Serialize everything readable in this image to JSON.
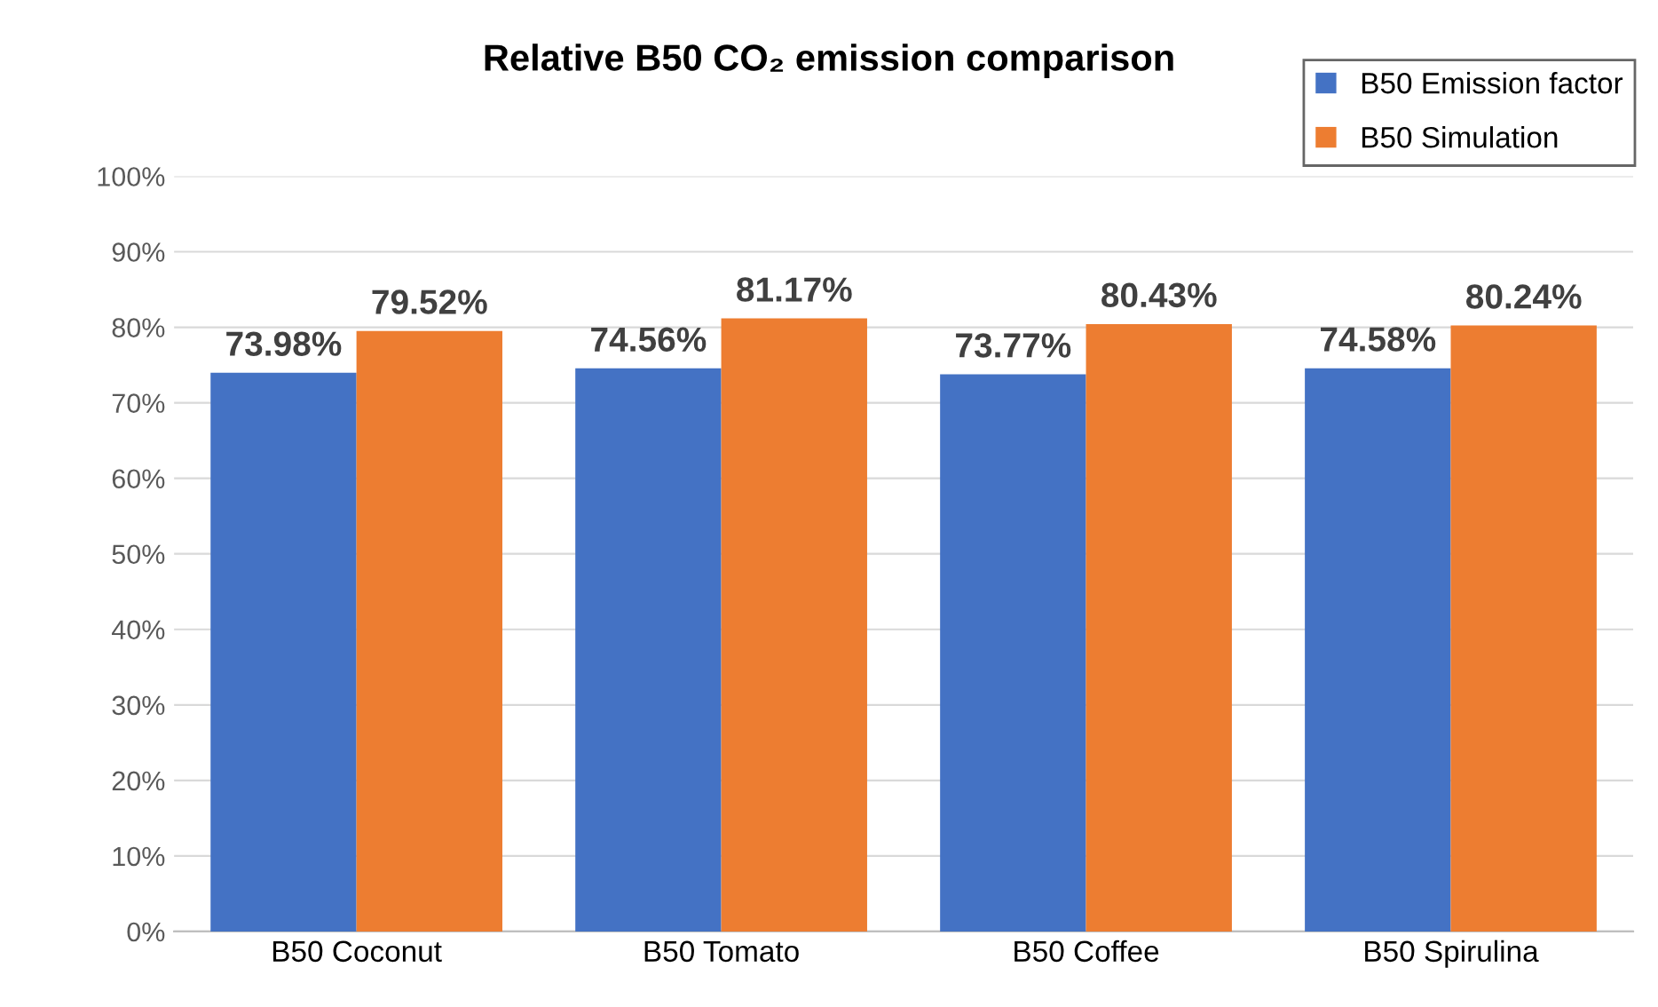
{
  "chart_data": {
    "type": "bar",
    "title": "Relative B50 CO₂ emission comparison",
    "categories": [
      "B50 Coconut",
      "B50 Tomato",
      "B50 Coffee",
      "B50 Spirulina"
    ],
    "series": [
      {
        "name": "B50 Emission factor",
        "color": "#4472c4",
        "values": [
          73.98,
          74.56,
          73.77,
          74.58
        ],
        "value_labels": [
          "73.98%",
          "74.56%",
          "73.77%",
          "74.58%"
        ]
      },
      {
        "name": "B50 Simulation",
        "color": "#ed7d31",
        "values": [
          79.52,
          81.17,
          80.43,
          80.24
        ],
        "value_labels": [
          "79.52%",
          "81.17%",
          "80.43%",
          "80.24%"
        ]
      }
    ],
    "ylim": [
      0,
      100
    ],
    "yticks": [
      {
        "value": 0,
        "label": "0%"
      },
      {
        "value": 10,
        "label": "10%"
      },
      {
        "value": 20,
        "label": "20%"
      },
      {
        "value": 30,
        "label": "30%"
      },
      {
        "value": 40,
        "label": "40%"
      },
      {
        "value": 50,
        "label": "50%"
      },
      {
        "value": 60,
        "label": "60%"
      },
      {
        "value": 70,
        "label": "70%"
      },
      {
        "value": 80,
        "label": "80%"
      },
      {
        "value": 90,
        "label": "90%"
      },
      {
        "value": 100,
        "label": "100%"
      }
    ],
    "grid": "y",
    "legend": "top right"
  }
}
